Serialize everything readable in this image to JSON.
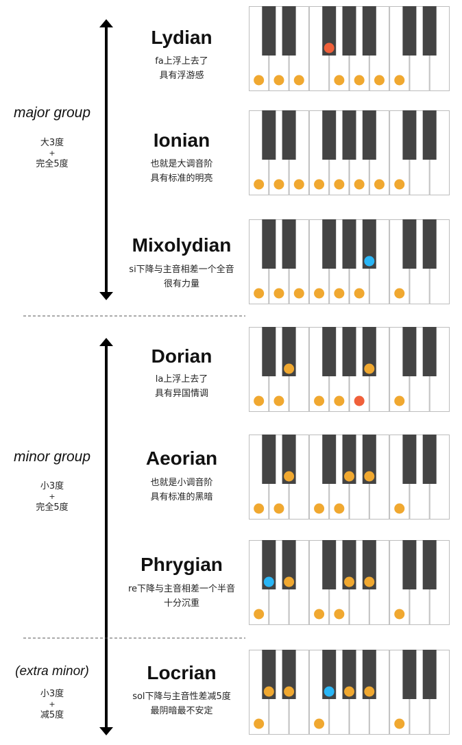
{
  "colors": {
    "white_key": "#ffffff",
    "white_key_border": "#bdbdbd",
    "black_key": "#444444",
    "dot_scale": "#f0a830",
    "dot_raised": "#f0603a",
    "dot_lowered": "#29b6f6"
  },
  "groups": [
    {
      "label": "major group",
      "line1": "大3度",
      "line2": "+",
      "line3": "完全5度"
    },
    {
      "label": "minor group",
      "line1": "小3度",
      "line2": "+",
      "line3": "完全5度"
    },
    {
      "label": "(extra minor)",
      "line1": "小3度",
      "line2": "+",
      "line3": "减5度"
    }
  ],
  "modes": [
    {
      "name": "Lydian",
      "desc1": "fa上浮上去了",
      "desc2": "具有浮游感",
      "dots": [
        {
          "key": "w0",
          "color": "scale"
        },
        {
          "key": "w1",
          "color": "scale"
        },
        {
          "key": "w2",
          "color": "scale"
        },
        {
          "key": "b2",
          "color": "raised"
        },
        {
          "key": "w4",
          "color": "scale"
        },
        {
          "key": "w5",
          "color": "scale"
        },
        {
          "key": "w6",
          "color": "scale"
        },
        {
          "key": "w7",
          "color": "scale"
        }
      ]
    },
    {
      "name": "Ionian",
      "desc1": "也就是大调音阶",
      "desc2": "具有标准的明亮",
      "dots": [
        {
          "key": "w0",
          "color": "scale"
        },
        {
          "key": "w1",
          "color": "scale"
        },
        {
          "key": "w2",
          "color": "scale"
        },
        {
          "key": "w3",
          "color": "scale"
        },
        {
          "key": "w4",
          "color": "scale"
        },
        {
          "key": "w5",
          "color": "scale"
        },
        {
          "key": "w6",
          "color": "scale"
        },
        {
          "key": "w7",
          "color": "scale"
        }
      ]
    },
    {
      "name": "Mixolydian",
      "desc1": "si下降与主音相差一个全音",
      "desc2": "很有力量",
      "dots": [
        {
          "key": "w0",
          "color": "scale"
        },
        {
          "key": "w1",
          "color": "scale"
        },
        {
          "key": "w2",
          "color": "scale"
        },
        {
          "key": "w3",
          "color": "scale"
        },
        {
          "key": "w4",
          "color": "scale"
        },
        {
          "key": "w5",
          "color": "scale"
        },
        {
          "key": "b4",
          "color": "lowered"
        },
        {
          "key": "w7",
          "color": "scale"
        }
      ]
    },
    {
      "name": "Dorian",
      "desc1": "la上浮上去了",
      "desc2": "具有异国情调",
      "dots": [
        {
          "key": "w0",
          "color": "scale"
        },
        {
          "key": "w1",
          "color": "scale"
        },
        {
          "key": "b1",
          "color": "scale"
        },
        {
          "key": "w3",
          "color": "scale"
        },
        {
          "key": "w4",
          "color": "scale"
        },
        {
          "key": "w5",
          "color": "raised"
        },
        {
          "key": "b4",
          "color": "scale"
        },
        {
          "key": "w7",
          "color": "scale"
        }
      ]
    },
    {
      "name": "Aeorian",
      "desc1": "也就是小调音阶",
      "desc2": "具有标准的黑暗",
      "dots": [
        {
          "key": "w0",
          "color": "scale"
        },
        {
          "key": "w1",
          "color": "scale"
        },
        {
          "key": "b1",
          "color": "scale"
        },
        {
          "key": "w3",
          "color": "scale"
        },
        {
          "key": "w4",
          "color": "scale"
        },
        {
          "key": "b3",
          "color": "scale"
        },
        {
          "key": "b4",
          "color": "scale"
        },
        {
          "key": "w7",
          "color": "scale"
        }
      ]
    },
    {
      "name": "Phrygian",
      "desc1": "re下降与主音相差一个半音",
      "desc2": "十分沉重",
      "dots": [
        {
          "key": "w0",
          "color": "scale"
        },
        {
          "key": "b0",
          "color": "lowered"
        },
        {
          "key": "b1",
          "color": "scale"
        },
        {
          "key": "w3",
          "color": "scale"
        },
        {
          "key": "w4",
          "color": "scale"
        },
        {
          "key": "b3",
          "color": "scale"
        },
        {
          "key": "b4",
          "color": "scale"
        },
        {
          "key": "w7",
          "color": "scale"
        }
      ]
    },
    {
      "name": "Locrian",
      "desc1": "sol下降与主音性差减5度",
      "desc2": "最阴暗最不安定",
      "dots": [
        {
          "key": "w0",
          "color": "scale"
        },
        {
          "key": "b0",
          "color": "scale"
        },
        {
          "key": "b1",
          "color": "scale"
        },
        {
          "key": "w3",
          "color": "scale"
        },
        {
          "key": "b2",
          "color": "lowered"
        },
        {
          "key": "b3",
          "color": "scale"
        },
        {
          "key": "b4",
          "color": "scale"
        },
        {
          "key": "w7",
          "color": "scale"
        }
      ]
    }
  ]
}
